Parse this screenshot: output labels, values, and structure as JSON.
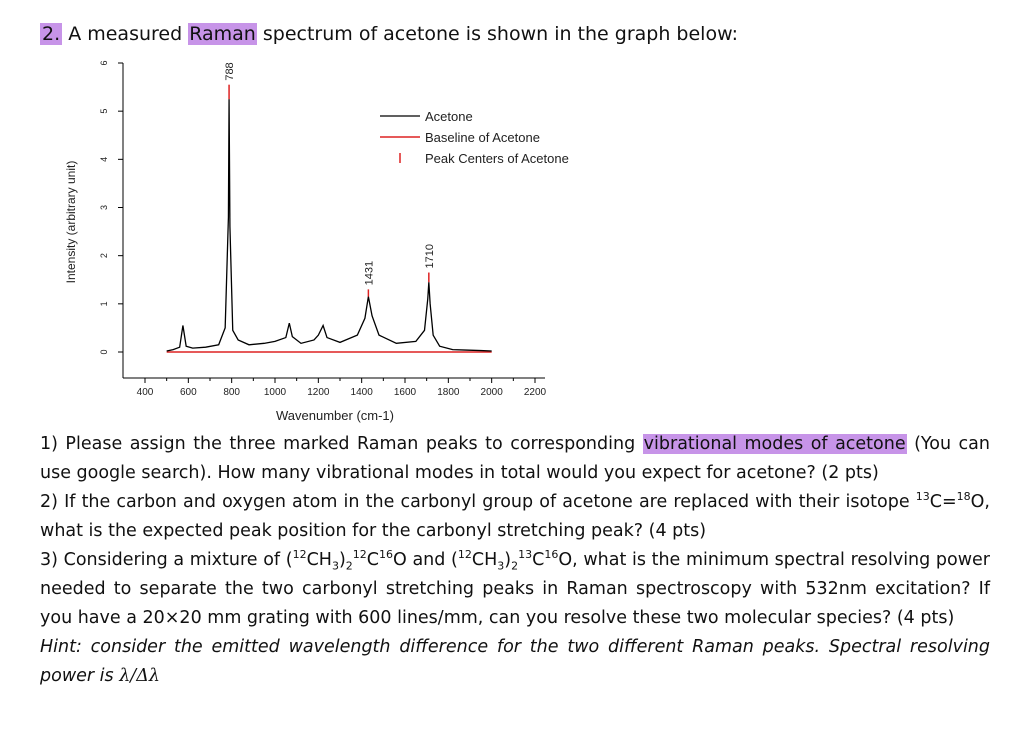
{
  "question": {
    "number": "2.",
    "intro_before": "A measured ",
    "intro_highlight": "Raman",
    "intro_after": " spectrum of acetone is shown in the graph below:"
  },
  "chart_data": {
    "type": "line",
    "xlabel": "Wavenumber (cm-1)",
    "ylabel": "Intensity (arbitrary unit)",
    "xlim": [
      400,
      2200
    ],
    "ylim": [
      0,
      6
    ],
    "x_ticks": [
      "400",
      "600",
      "800",
      "1000",
      "1200",
      "1400",
      "1600",
      "1800",
      "2000",
      "2200"
    ],
    "y_ticks": [
      "0",
      "1",
      "2",
      "3",
      "4",
      "5",
      "6"
    ],
    "legend_position": "top-right",
    "legend": [
      "Acetone",
      "Baseline of Acetone",
      "Peak Centers of Acetone"
    ],
    "series": [
      {
        "name": "Acetone",
        "color": "#000000",
        "x": [
          500,
          530,
          560,
          575,
          590,
          620,
          680,
          740,
          770,
          785,
          788,
          792,
          805,
          830,
          880,
          950,
          1000,
          1050,
          1066,
          1080,
          1120,
          1180,
          1200,
          1222,
          1240,
          1300,
          1380,
          1415,
          1431,
          1448,
          1480,
          1560,
          1650,
          1690,
          1705,
          1710,
          1716,
          1730,
          1760,
          1820,
          1880,
          1950,
          2000
        ],
        "y": [
          0.02,
          0.05,
          0.1,
          0.55,
          0.12,
          0.08,
          0.1,
          0.15,
          0.5,
          2.8,
          5.25,
          2.6,
          0.45,
          0.25,
          0.15,
          0.18,
          0.22,
          0.3,
          0.6,
          0.32,
          0.18,
          0.25,
          0.35,
          0.55,
          0.3,
          0.2,
          0.35,
          0.7,
          1.15,
          0.75,
          0.35,
          0.18,
          0.22,
          0.45,
          1.1,
          1.45,
          1.0,
          0.35,
          0.12,
          0.05,
          0.04,
          0.03,
          0.02
        ]
      },
      {
        "name": "Baseline of Acetone",
        "color": "#dd2222",
        "x": [
          500,
          2000
        ],
        "y": [
          0,
          0
        ]
      }
    ],
    "peak_centers": [
      {
        "x": 788,
        "y_bottom": 5.25,
        "y_top": 5.55,
        "label": "788"
      },
      {
        "x": 1431,
        "y_bottom": 1.15,
        "y_top": 1.3,
        "label": "1431"
      },
      {
        "x": 1710,
        "y_bottom": 1.45,
        "y_top": 1.65,
        "label": "1710"
      }
    ]
  },
  "paragraph1": {
    "before": "1) Please assign the three marked Raman peaks to corresponding ",
    "highlight": "vibrational modes of acetone",
    "after": " (You can use google search). How many vibrational modes in total would you expect for acetone? (2 pts)"
  },
  "paragraph2": {
    "before": "2) If the carbon and oxygen atom in the carbonyl group of acetone are replaced with their isotope ",
    "sup13": "13",
    "c_eq": "C=",
    "sup18": "18",
    "o_end": "O,",
    "after": " what is the expected peak position for the carbonyl stretching peak? (4 pts)"
  },
  "paragraph3": {
    "start": "3) Considering a mixture of (",
    "s12a": "12",
    "ch3a": "CH",
    "sub3a": "3",
    "close2a": ")",
    "sub2a": "2",
    "s12b": "12",
    "c16a": "C",
    "s16a": "16",
    "o_and": "O and (",
    "s12c": "12",
    "ch3b": "CH",
    "sub3b": "3",
    "close2b": ")",
    "sub2b": "2",
    "s13": "13",
    "c16b": "C",
    "s16b": "16",
    "rest": "O, what is the minimum spectral resolving power needed to separate the two carbonyl stretching peaks in Raman spectroscopy with 532nm excitation? If you have a 20×20 mm grating with 600 lines/mm, can you resolve these two molecular species? (4 pts)"
  },
  "hint": {
    "text": "Hint: consider the emitted wavelength difference for the two different Raman peaks. Spectral resolving power is ",
    "formula": "λ/Δλ"
  }
}
